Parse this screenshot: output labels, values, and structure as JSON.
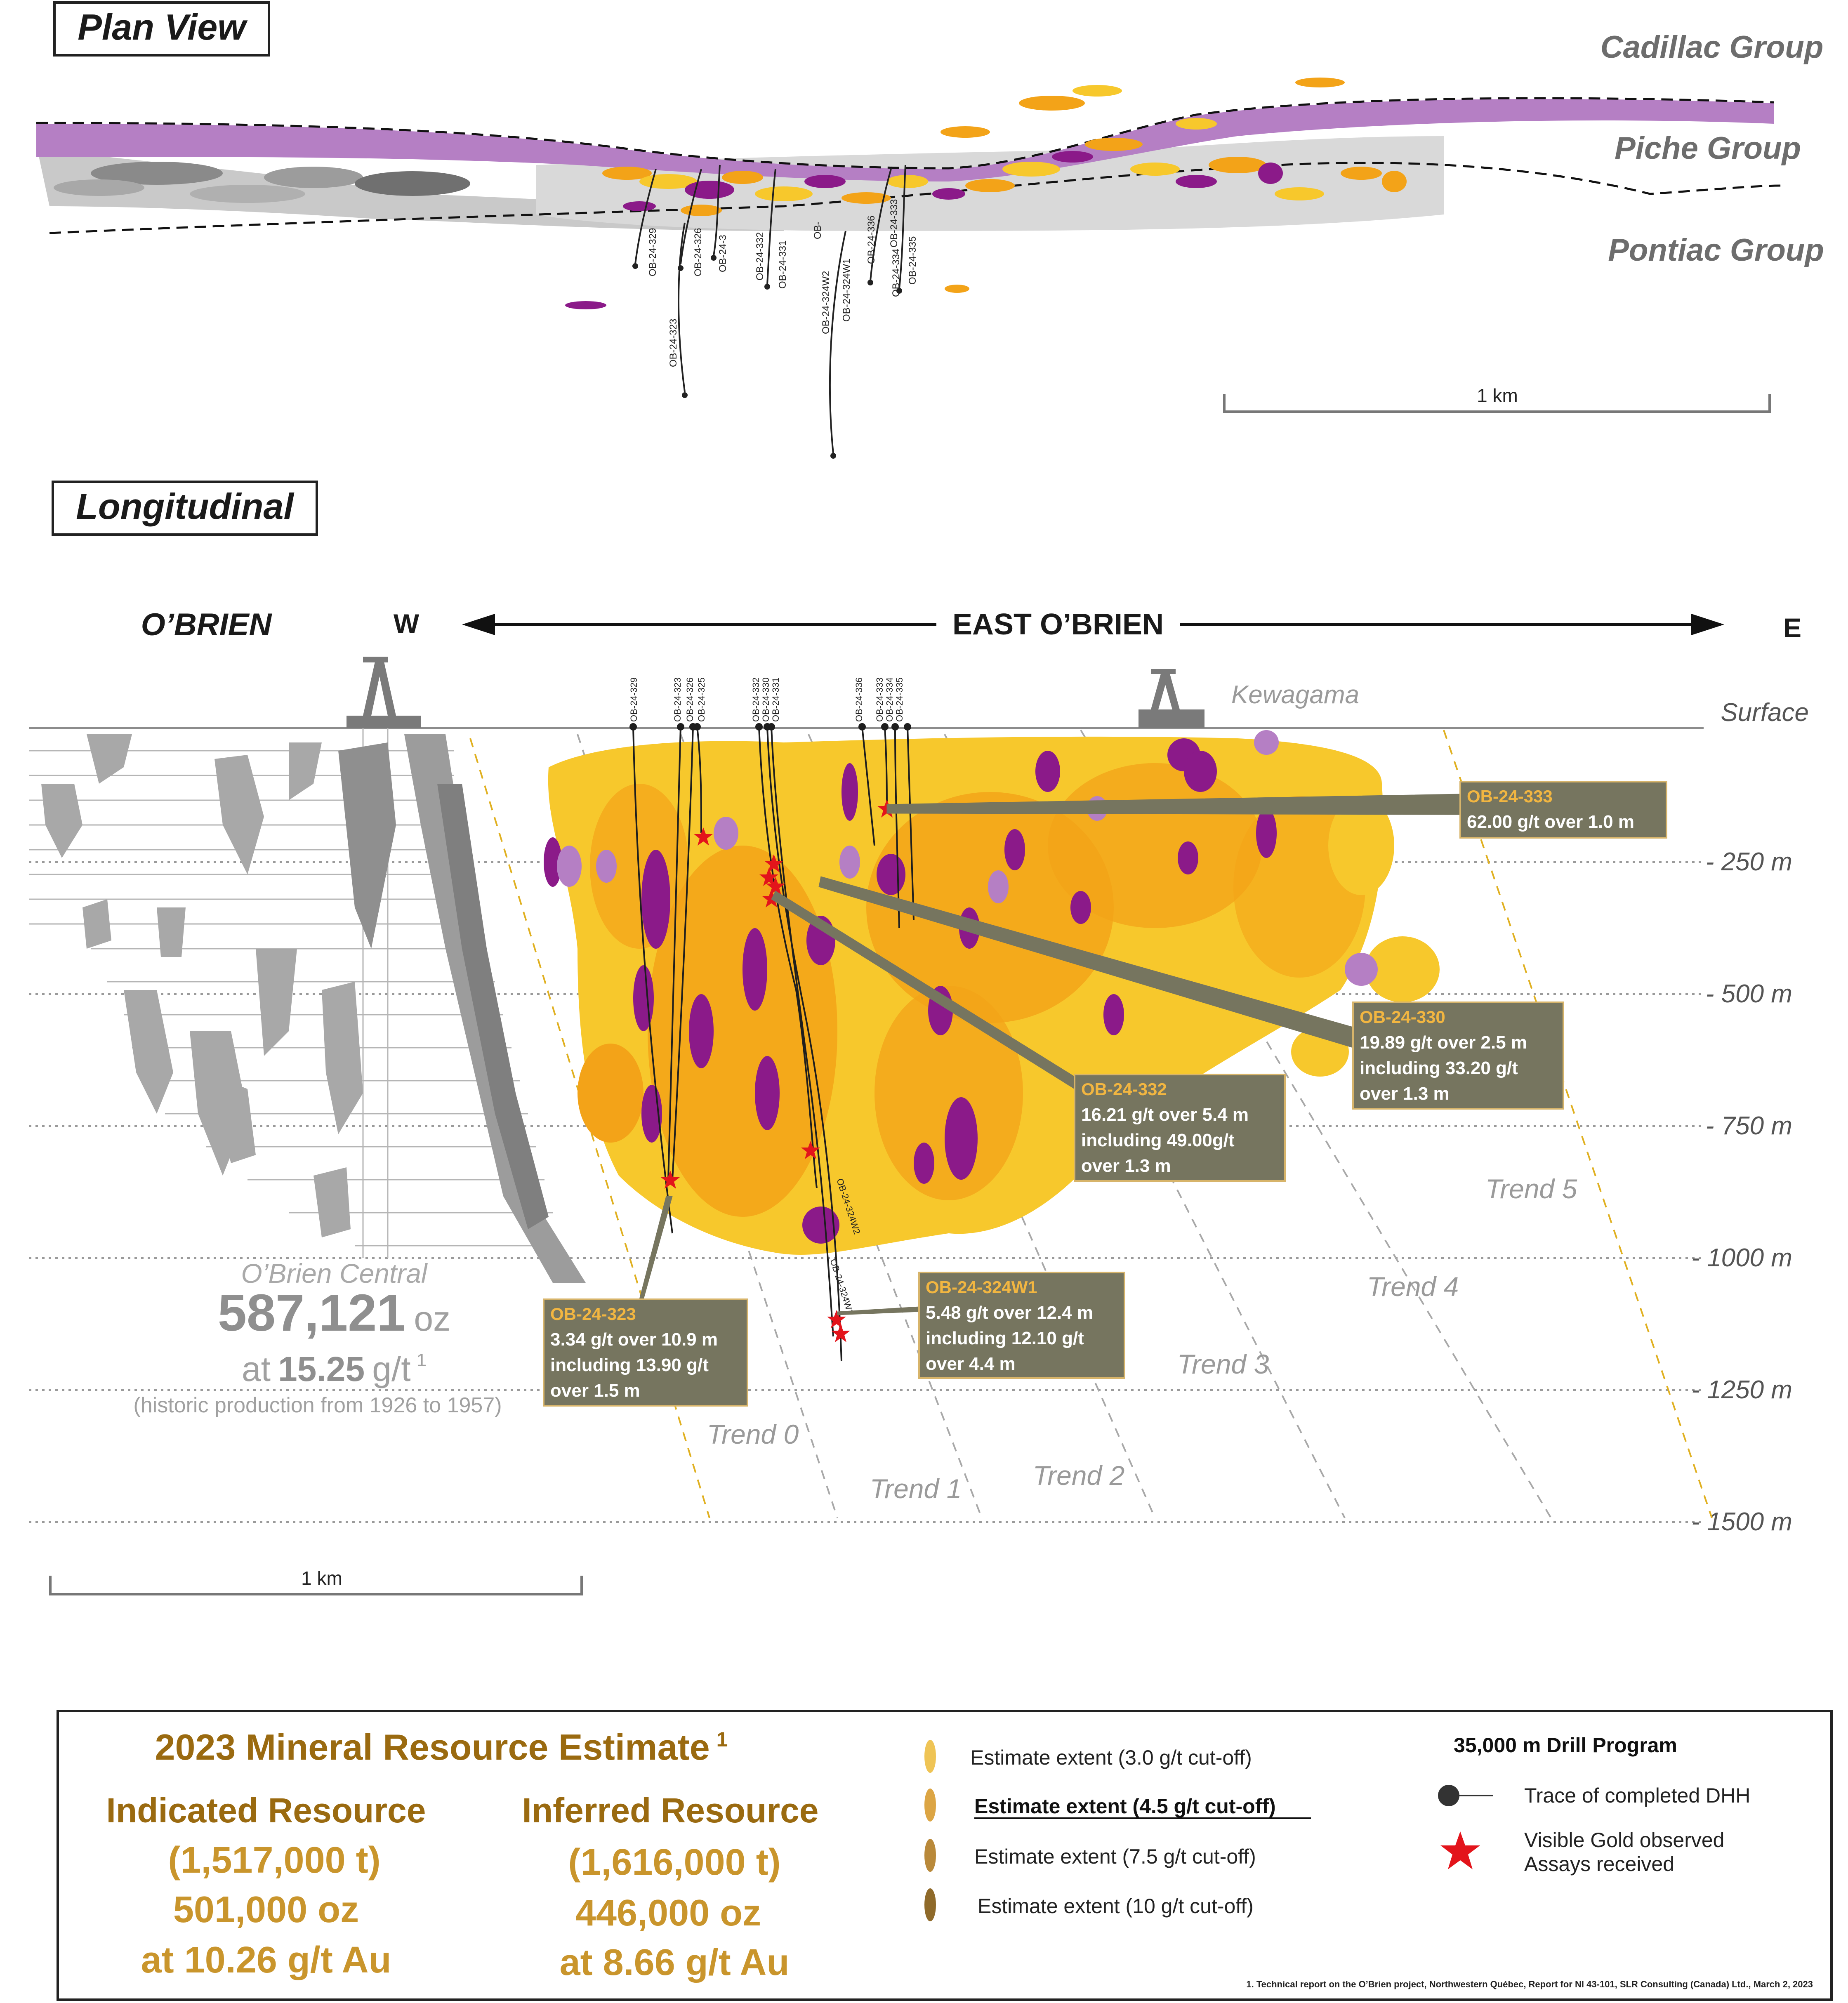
{
  "plan_view": {
    "title": "Plan View",
    "groups": [
      "Cadillac Group",
      "Piche Group",
      "Pontiac Group"
    ],
    "scale_label": "1 km",
    "holes": [
      "OB-24-329",
      "OB-24-326",
      "OB-24-3",
      "OB-24-332",
      "OB-24-331",
      "OB-",
      "OB-24-336",
      "OB-24-333",
      "OB-24-334",
      "OB-24-335",
      "OB-24-324W2",
      "OB-24-324W1",
      "OB-24-323"
    ]
  },
  "longitudinal": {
    "title": "Longitudinal",
    "obrien_label": "O’BRIEN",
    "west_label": "W",
    "east_label": "E",
    "east_obrien_label": "EAST O’BRIEN",
    "kewagama_label": "Kewagama",
    "surface_label": "Surface",
    "depth_labels": [
      "- 250 m",
      "- 500 m",
      "- 750 m",
      "- 1000 m",
      "- 1250 m",
      "- 1500 m"
    ],
    "trends": [
      "Trend 0",
      "Trend 1",
      "Trend 2",
      "Trend 3",
      "Trend 4",
      "Trend 5"
    ],
    "scale_label": "1 km",
    "collar_holes": [
      "OB-24-329",
      "OB-24-323",
      "OB-24-326",
      "OB-24-325",
      "OB-24-332",
      "OB-24-330",
      "OB-24-331",
      "OB-24-336",
      "OB-24-333",
      "OB-24-334",
      "OB-24-335"
    ],
    "deep_holes": [
      "OB-24-324W2",
      "OB-24-324W1"
    ],
    "callouts": [
      {
        "hole": "OB-24-333",
        "lines": [
          "62.00 g/t over 1.0 m"
        ]
      },
      {
        "hole": "OB-24-330",
        "lines": [
          "19.89 g/t over 2.5 m",
          "including 33.20 g/t",
          "over 1.3 m"
        ]
      },
      {
        "hole": "OB-24-332",
        "lines": [
          "16.21 g/t over 5.4 m",
          "including 49.00g/t",
          "over 1.3 m"
        ]
      },
      {
        "hole": "OB-24-324W1",
        "lines": [
          "5.48 g/t over 12.4 m",
          "including 12.10 g/t",
          "over 4.4 m"
        ]
      },
      {
        "hole": "OB-24-323",
        "lines": [
          "3.34 g/t over 10.9 m",
          "including 13.90 g/t",
          "over 1.5 m"
        ]
      }
    ],
    "historic": {
      "name": "O’Brien Central",
      "ounces": "587,121",
      "oz_unit": "oz",
      "at": "at",
      "grade": "15.25",
      "grade_unit": "g/t",
      "footnote_mark": "1",
      "production": "(historic production from 1926 to 1957)"
    }
  },
  "resource_box": {
    "title": "2023 Mineral Resource Estimate",
    "title_mark": "1",
    "indicated": {
      "label": "Indicated Resource",
      "tonnes": "(1,517,000 t)",
      "ounces": "501,000 oz",
      "grade": "at 10.26 g/t Au"
    },
    "inferred": {
      "label": "Inferred Resource",
      "tonnes": "(1,616,000 t)",
      "ounces": "446,000 oz",
      "grade": "at 8.66 g/t Au"
    },
    "legend": [
      "Estimate extent (3.0  g/t cut-off)",
      "Estimate extent (4.5  g/t cut-off)",
      "Estimate extent (7.5 g/t cut-off)",
      "Estimate extent (10 g/t cut-off)"
    ],
    "drill_title": "35,000 m Drill Program",
    "drill_trace": "Trace of completed DHH",
    "visible_gold": [
      "Visible Gold observed",
      "Assays received"
    ],
    "footnote": "1. Technical report on the O’Brien project, Northwestern Québec, Report for NI 43-101, SLR Consulting (Canada) Ltd., March 2, 2023"
  },
  "colors": {
    "purple": "#8b1a89",
    "lilac": "#b57fc4",
    "yellow": "#f7c82c",
    "orange": "#f3a318",
    "callout_bg": "#76755f",
    "callout_title": "#f2b641",
    "resource_title": "#9a6a10",
    "resource_value": "#c9952c",
    "star": "#e3141b"
  }
}
